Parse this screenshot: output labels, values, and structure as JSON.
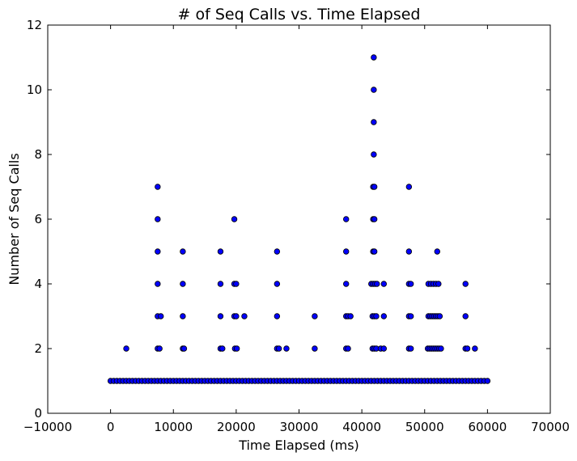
{
  "chart_data": {
    "type": "scatter",
    "title": "# of Seq Calls vs. Time Elapsed",
    "xlabel": "Time Elapsed (ms)",
    "ylabel": "Number of Seq Calls",
    "xlim": [
      -10000,
      70000
    ],
    "ylim": [
      0,
      12
    ],
    "xticks": [
      -10000,
      0,
      10000,
      20000,
      30000,
      40000,
      50000,
      60000,
      70000
    ],
    "yticks": [
      0,
      2,
      4,
      6,
      8,
      10,
      12
    ],
    "xtick_labels": [
      "−10000",
      "0",
      "10000",
      "20000",
      "30000",
      "40000",
      "50000",
      "60000",
      "70000"
    ],
    "ytick_labels": [
      "0",
      "2",
      "4",
      "6",
      "8",
      "10",
      "12"
    ],
    "grid": false,
    "marker_color": "#0000ff",
    "marker_edge_color": "#000000",
    "points": [
      [
        0,
        1
      ],
      [
        500,
        1
      ],
      [
        1000,
        1
      ],
      [
        1500,
        1
      ],
      [
        2000,
        1
      ],
      [
        2500,
        1
      ],
      [
        3000,
        1
      ],
      [
        3500,
        1
      ],
      [
        4000,
        1
      ],
      [
        4500,
        1
      ],
      [
        5000,
        1
      ],
      [
        5500,
        1
      ],
      [
        6000,
        1
      ],
      [
        6500,
        1
      ],
      [
        7000,
        1
      ],
      [
        7500,
        1
      ],
      [
        8000,
        1
      ],
      [
        8500,
        1
      ],
      [
        9000,
        1
      ],
      [
        9500,
        1
      ],
      [
        10000,
        1
      ],
      [
        10500,
        1
      ],
      [
        11000,
        1
      ],
      [
        11500,
        1
      ],
      [
        12000,
        1
      ],
      [
        12500,
        1
      ],
      [
        13000,
        1
      ],
      [
        13500,
        1
      ],
      [
        14000,
        1
      ],
      [
        14500,
        1
      ],
      [
        15000,
        1
      ],
      [
        15500,
        1
      ],
      [
        16000,
        1
      ],
      [
        16500,
        1
      ],
      [
        17000,
        1
      ],
      [
        17500,
        1
      ],
      [
        18000,
        1
      ],
      [
        18500,
        1
      ],
      [
        19000,
        1
      ],
      [
        19500,
        1
      ],
      [
        20000,
        1
      ],
      [
        20500,
        1
      ],
      [
        21000,
        1
      ],
      [
        21500,
        1
      ],
      [
        22000,
        1
      ],
      [
        22500,
        1
      ],
      [
        23000,
        1
      ],
      [
        23500,
        1
      ],
      [
        24000,
        1
      ],
      [
        24500,
        1
      ],
      [
        25000,
        1
      ],
      [
        25500,
        1
      ],
      [
        26000,
        1
      ],
      [
        26500,
        1
      ],
      [
        27000,
        1
      ],
      [
        27500,
        1
      ],
      [
        28000,
        1
      ],
      [
        28500,
        1
      ],
      [
        29000,
        1
      ],
      [
        29500,
        1
      ],
      [
        30000,
        1
      ],
      [
        30500,
        1
      ],
      [
        31000,
        1
      ],
      [
        31500,
        1
      ],
      [
        32000,
        1
      ],
      [
        32500,
        1
      ],
      [
        33000,
        1
      ],
      [
        33500,
        1
      ],
      [
        34000,
        1
      ],
      [
        34500,
        1
      ],
      [
        35000,
        1
      ],
      [
        35500,
        1
      ],
      [
        36000,
        1
      ],
      [
        36500,
        1
      ],
      [
        37000,
        1
      ],
      [
        37500,
        1
      ],
      [
        38000,
        1
      ],
      [
        38500,
        1
      ],
      [
        39000,
        1
      ],
      [
        39500,
        1
      ],
      [
        40000,
        1
      ],
      [
        40500,
        1
      ],
      [
        41000,
        1
      ],
      [
        41500,
        1
      ],
      [
        42000,
        1
      ],
      [
        42500,
        1
      ],
      [
        43000,
        1
      ],
      [
        43500,
        1
      ],
      [
        44000,
        1
      ],
      [
        44500,
        1
      ],
      [
        45000,
        1
      ],
      [
        45500,
        1
      ],
      [
        46000,
        1
      ],
      [
        46500,
        1
      ],
      [
        47000,
        1
      ],
      [
        47500,
        1
      ],
      [
        48000,
        1
      ],
      [
        48500,
        1
      ],
      [
        49000,
        1
      ],
      [
        49500,
        1
      ],
      [
        50000,
        1
      ],
      [
        50500,
        1
      ],
      [
        51000,
        1
      ],
      [
        51500,
        1
      ],
      [
        52000,
        1
      ],
      [
        52500,
        1
      ],
      [
        53000,
        1
      ],
      [
        53500,
        1
      ],
      [
        54000,
        1
      ],
      [
        54500,
        1
      ],
      [
        55000,
        1
      ],
      [
        55500,
        1
      ],
      [
        56000,
        1
      ],
      [
        56500,
        1
      ],
      [
        57000,
        1
      ],
      [
        57500,
        1
      ],
      [
        58000,
        1
      ],
      [
        58500,
        1
      ],
      [
        59000,
        1
      ],
      [
        59500,
        1
      ],
      [
        60000,
        1
      ],
      [
        2500,
        2
      ],
      [
        7500,
        2
      ],
      [
        7800,
        2
      ],
      [
        11500,
        2
      ],
      [
        11700,
        2
      ],
      [
        17500,
        2
      ],
      [
        17800,
        2
      ],
      [
        19800,
        2
      ],
      [
        20100,
        2
      ],
      [
        26500,
        2
      ],
      [
        26800,
        2
      ],
      [
        28000,
        2
      ],
      [
        32500,
        2
      ],
      [
        37500,
        2
      ],
      [
        37800,
        2
      ],
      [
        41700,
        2
      ],
      [
        42000,
        2
      ],
      [
        42300,
        2
      ],
      [
        43000,
        2
      ],
      [
        43500,
        2
      ],
      [
        47500,
        2
      ],
      [
        47800,
        2
      ],
      [
        50500,
        2
      ],
      [
        50800,
        2
      ],
      [
        51100,
        2
      ],
      [
        51400,
        2
      ],
      [
        51700,
        2
      ],
      [
        52000,
        2
      ],
      [
        52300,
        2
      ],
      [
        52600,
        2
      ],
      [
        56500,
        2
      ],
      [
        56800,
        2
      ],
      [
        58000,
        2
      ],
      [
        7500,
        3
      ],
      [
        8000,
        3
      ],
      [
        11500,
        3
      ],
      [
        17500,
        3
      ],
      [
        19700,
        3
      ],
      [
        20000,
        3
      ],
      [
        21300,
        3
      ],
      [
        26500,
        3
      ],
      [
        32500,
        3
      ],
      [
        37500,
        3
      ],
      [
        37800,
        3
      ],
      [
        38200,
        3
      ],
      [
        41700,
        3
      ],
      [
        42000,
        3
      ],
      [
        42300,
        3
      ],
      [
        43500,
        3
      ],
      [
        47500,
        3
      ],
      [
        47800,
        3
      ],
      [
        50600,
        3
      ],
      [
        50900,
        3
      ],
      [
        51200,
        3
      ],
      [
        51500,
        3
      ],
      [
        51800,
        3
      ],
      [
        52100,
        3
      ],
      [
        52400,
        3
      ],
      [
        56500,
        3
      ],
      [
        7500,
        4
      ],
      [
        11500,
        4
      ],
      [
        17500,
        4
      ],
      [
        19700,
        4
      ],
      [
        20000,
        4
      ],
      [
        26500,
        4
      ],
      [
        37500,
        4
      ],
      [
        41500,
        4
      ],
      [
        41800,
        4
      ],
      [
        42100,
        4
      ],
      [
        42400,
        4
      ],
      [
        43500,
        4
      ],
      [
        47500,
        4
      ],
      [
        47800,
        4
      ],
      [
        50600,
        4
      ],
      [
        51000,
        4
      ],
      [
        51400,
        4
      ],
      [
        51800,
        4
      ],
      [
        52200,
        4
      ],
      [
        56500,
        4
      ],
      [
        7500,
        5
      ],
      [
        11500,
        5
      ],
      [
        17500,
        5
      ],
      [
        26500,
        5
      ],
      [
        37500,
        5
      ],
      [
        41800,
        5
      ],
      [
        42000,
        5
      ],
      [
        47500,
        5
      ],
      [
        52000,
        5
      ],
      [
        7500,
        6
      ],
      [
        19700,
        6
      ],
      [
        37500,
        6
      ],
      [
        41800,
        6
      ],
      [
        42000,
        6
      ],
      [
        7500,
        7
      ],
      [
        41800,
        7
      ],
      [
        42000,
        7
      ],
      [
        47500,
        7
      ],
      [
        41900,
        8
      ],
      [
        41900,
        9
      ],
      [
        41900,
        10
      ],
      [
        41900,
        11
      ]
    ]
  }
}
